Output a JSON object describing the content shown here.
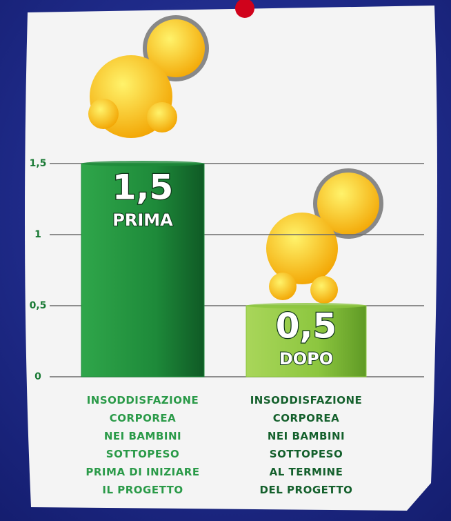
{
  "chart_data": {
    "type": "bar",
    "categories": [
      "INSODDISFAZIONE\nCORPOREA\nNEI BAMBINI\nSOTTOPESO\nPRIMA DI INIZIARE\nIL PROGETTO",
      "INSODDISFAZIONE\nCORPOREA\nNEI BAMBINI\nSOTTOPESO\nAL TERMINE\nDEL PROGETTO"
    ],
    "values": [
      1.5,
      0.5
    ],
    "value_labels": [
      "1,5",
      "0,5"
    ],
    "bar_labels": [
      "PRIMA",
      "DOPO"
    ],
    "colors": [
      "#1e8a3a",
      "#8cc63f"
    ],
    "ylim": [
      0,
      1.5
    ],
    "yticks": [
      0,
      {
        "value": 0.5,
        "label": "0,5"
      },
      1,
      {
        "value": 1.5,
        "label": "1,5"
      }
    ],
    "grid": true
  }
}
